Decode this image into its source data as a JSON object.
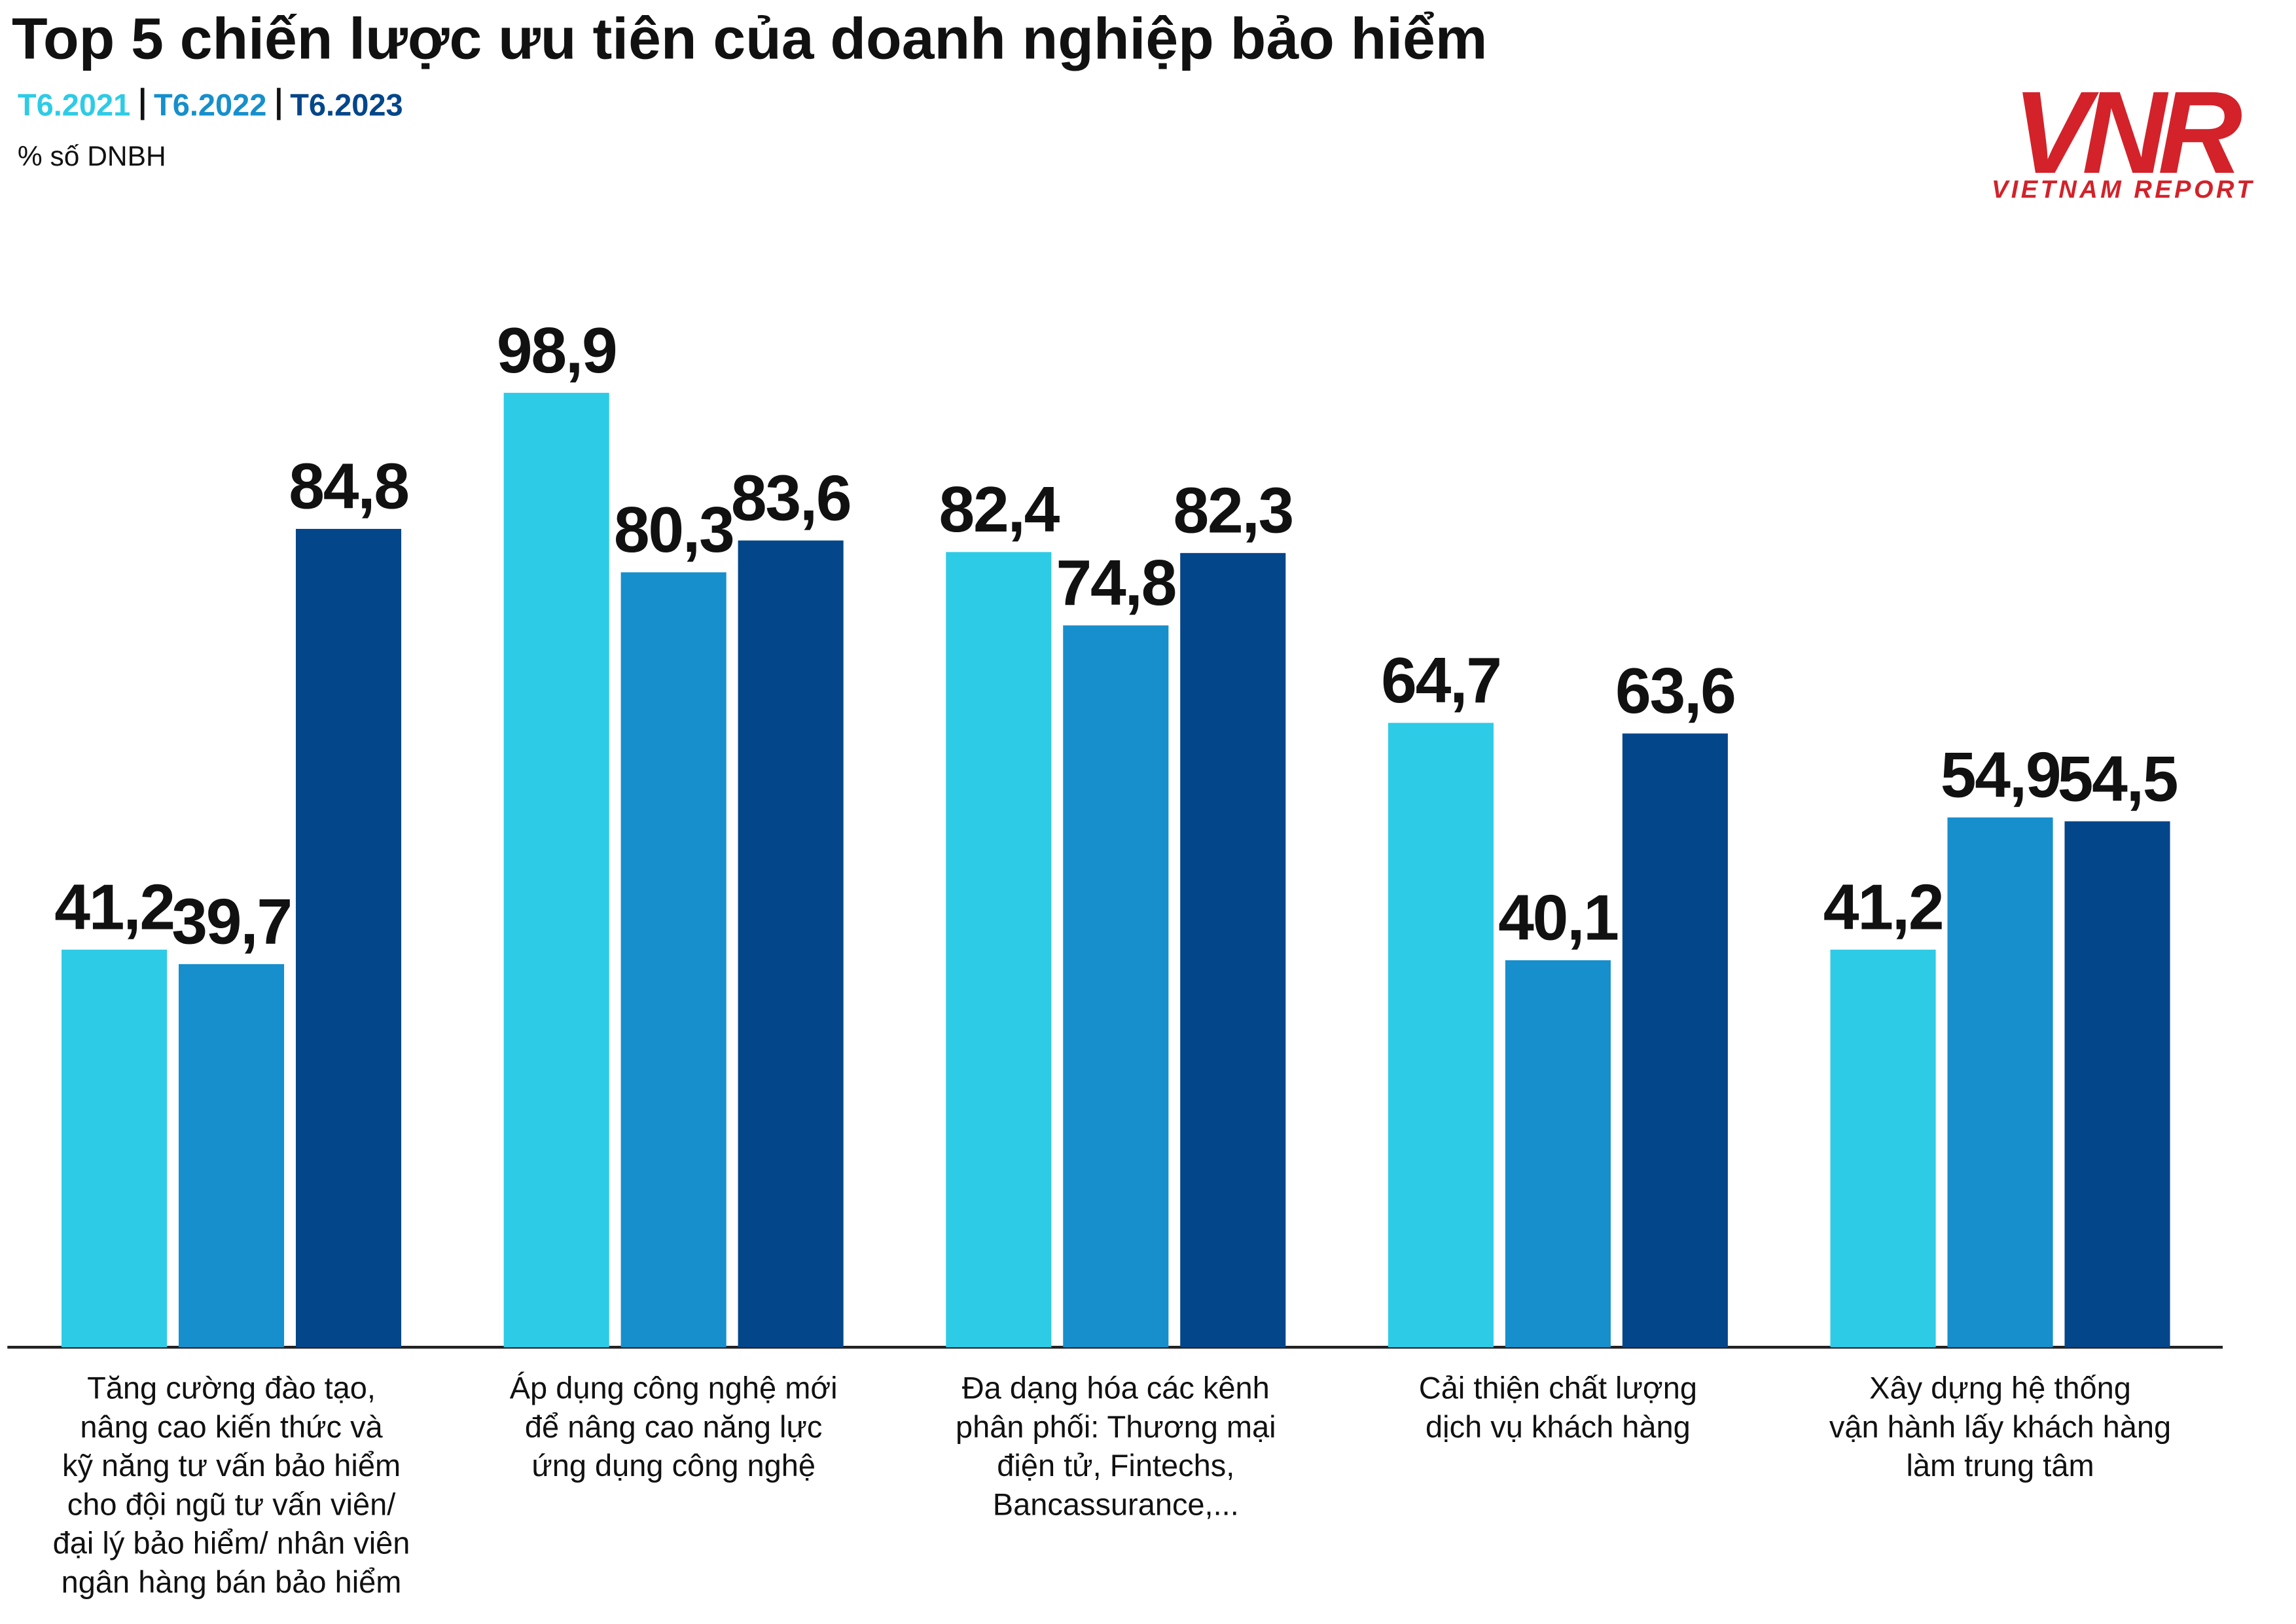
{
  "chart_data": {
    "type": "bar",
    "title": "Top 5 chiến lược ưu tiên của doanh nghiệp bảo hiểm",
    "subtitle": "% số DNBH",
    "categories": [
      [
        "Tăng cường đào tạo,",
        "nâng cao kiến thức và",
        "kỹ năng tư vấn bảo hiểm",
        "cho đội ngũ tư vấn viên/",
        "đại lý bảo hiểm/ nhân viên",
        "ngân hàng bán bảo hiểm"
      ],
      [
        "Áp dụng công nghệ mới",
        "để nâng cao năng lực",
        "ứng dụng công nghệ"
      ],
      [
        "Đa dạng hóa các kênh",
        "phân phối: Thương mại",
        "điện tử, Fintechs,",
        "Bancassurance,..."
      ],
      [
        "Cải thiện chất lượng",
        "dịch vụ khách hàng"
      ],
      [
        "Xây dựng hệ thống",
        "vận hành lấy khách hàng",
        "làm trung tâm"
      ]
    ],
    "series": [
      {
        "name": "T6.2021",
        "color": "#2ecbe6",
        "values": [
          41.2,
          98.9,
          82.4,
          64.7,
          41.2
        ],
        "value_labels": [
          "41,2",
          "98,9",
          "82,4",
          "64,7",
          "41,2"
        ]
      },
      {
        "name": "T6.2022",
        "color": "#168fcc",
        "values": [
          39.7,
          80.3,
          74.8,
          40.1,
          54.9
        ],
        "value_labels": [
          "39,7",
          "80,3",
          "74,8",
          "40,1",
          "54,9"
        ]
      },
      {
        "name": "T6.2023",
        "color": "#03468a",
        "values": [
          84.8,
          83.6,
          82.3,
          63.6,
          54.5
        ],
        "value_labels": [
          "84,8",
          "83,6",
          "82,3",
          "63,6",
          "54,5"
        ]
      }
    ],
    "ylim": [
      0,
      100
    ]
  },
  "logo": {
    "mark": "VNR",
    "text": "VIETNAM REPORT"
  }
}
